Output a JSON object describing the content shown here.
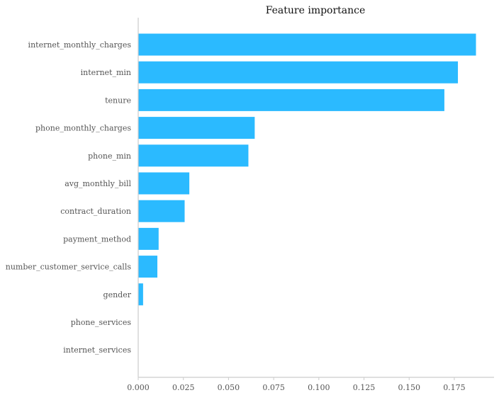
{
  "chart_data": {
    "type": "bar",
    "orientation": "horizontal",
    "title": "Feature importance",
    "xlabel": "",
    "ylabel": "",
    "categories": [
      "internet_monthly_charges",
      "internet_min",
      "tenure",
      "phone_monthly_charges",
      "phone_min",
      "avg_monthly_bill",
      "contract_duration",
      "payment_method",
      "number_customer_service_calls",
      "gender",
      "phone_services",
      "internet_services"
    ],
    "values": [
      0.187,
      0.177,
      0.1695,
      0.0645,
      0.061,
      0.0283,
      0.0257,
      0.0113,
      0.0106,
      0.0027,
      0.0,
      0.0
    ],
    "xlim": [
      0,
      0.197
    ],
    "xticks": [
      0.0,
      0.025,
      0.05,
      0.075,
      0.1,
      0.125,
      0.15,
      0.175
    ],
    "xtick_labels": [
      "0.000",
      "0.025",
      "0.050",
      "0.075",
      "0.100",
      "0.125",
      "0.150",
      "0.175"
    ],
    "bar_color": "#2bbaff",
    "grid": false,
    "legend": false
  }
}
